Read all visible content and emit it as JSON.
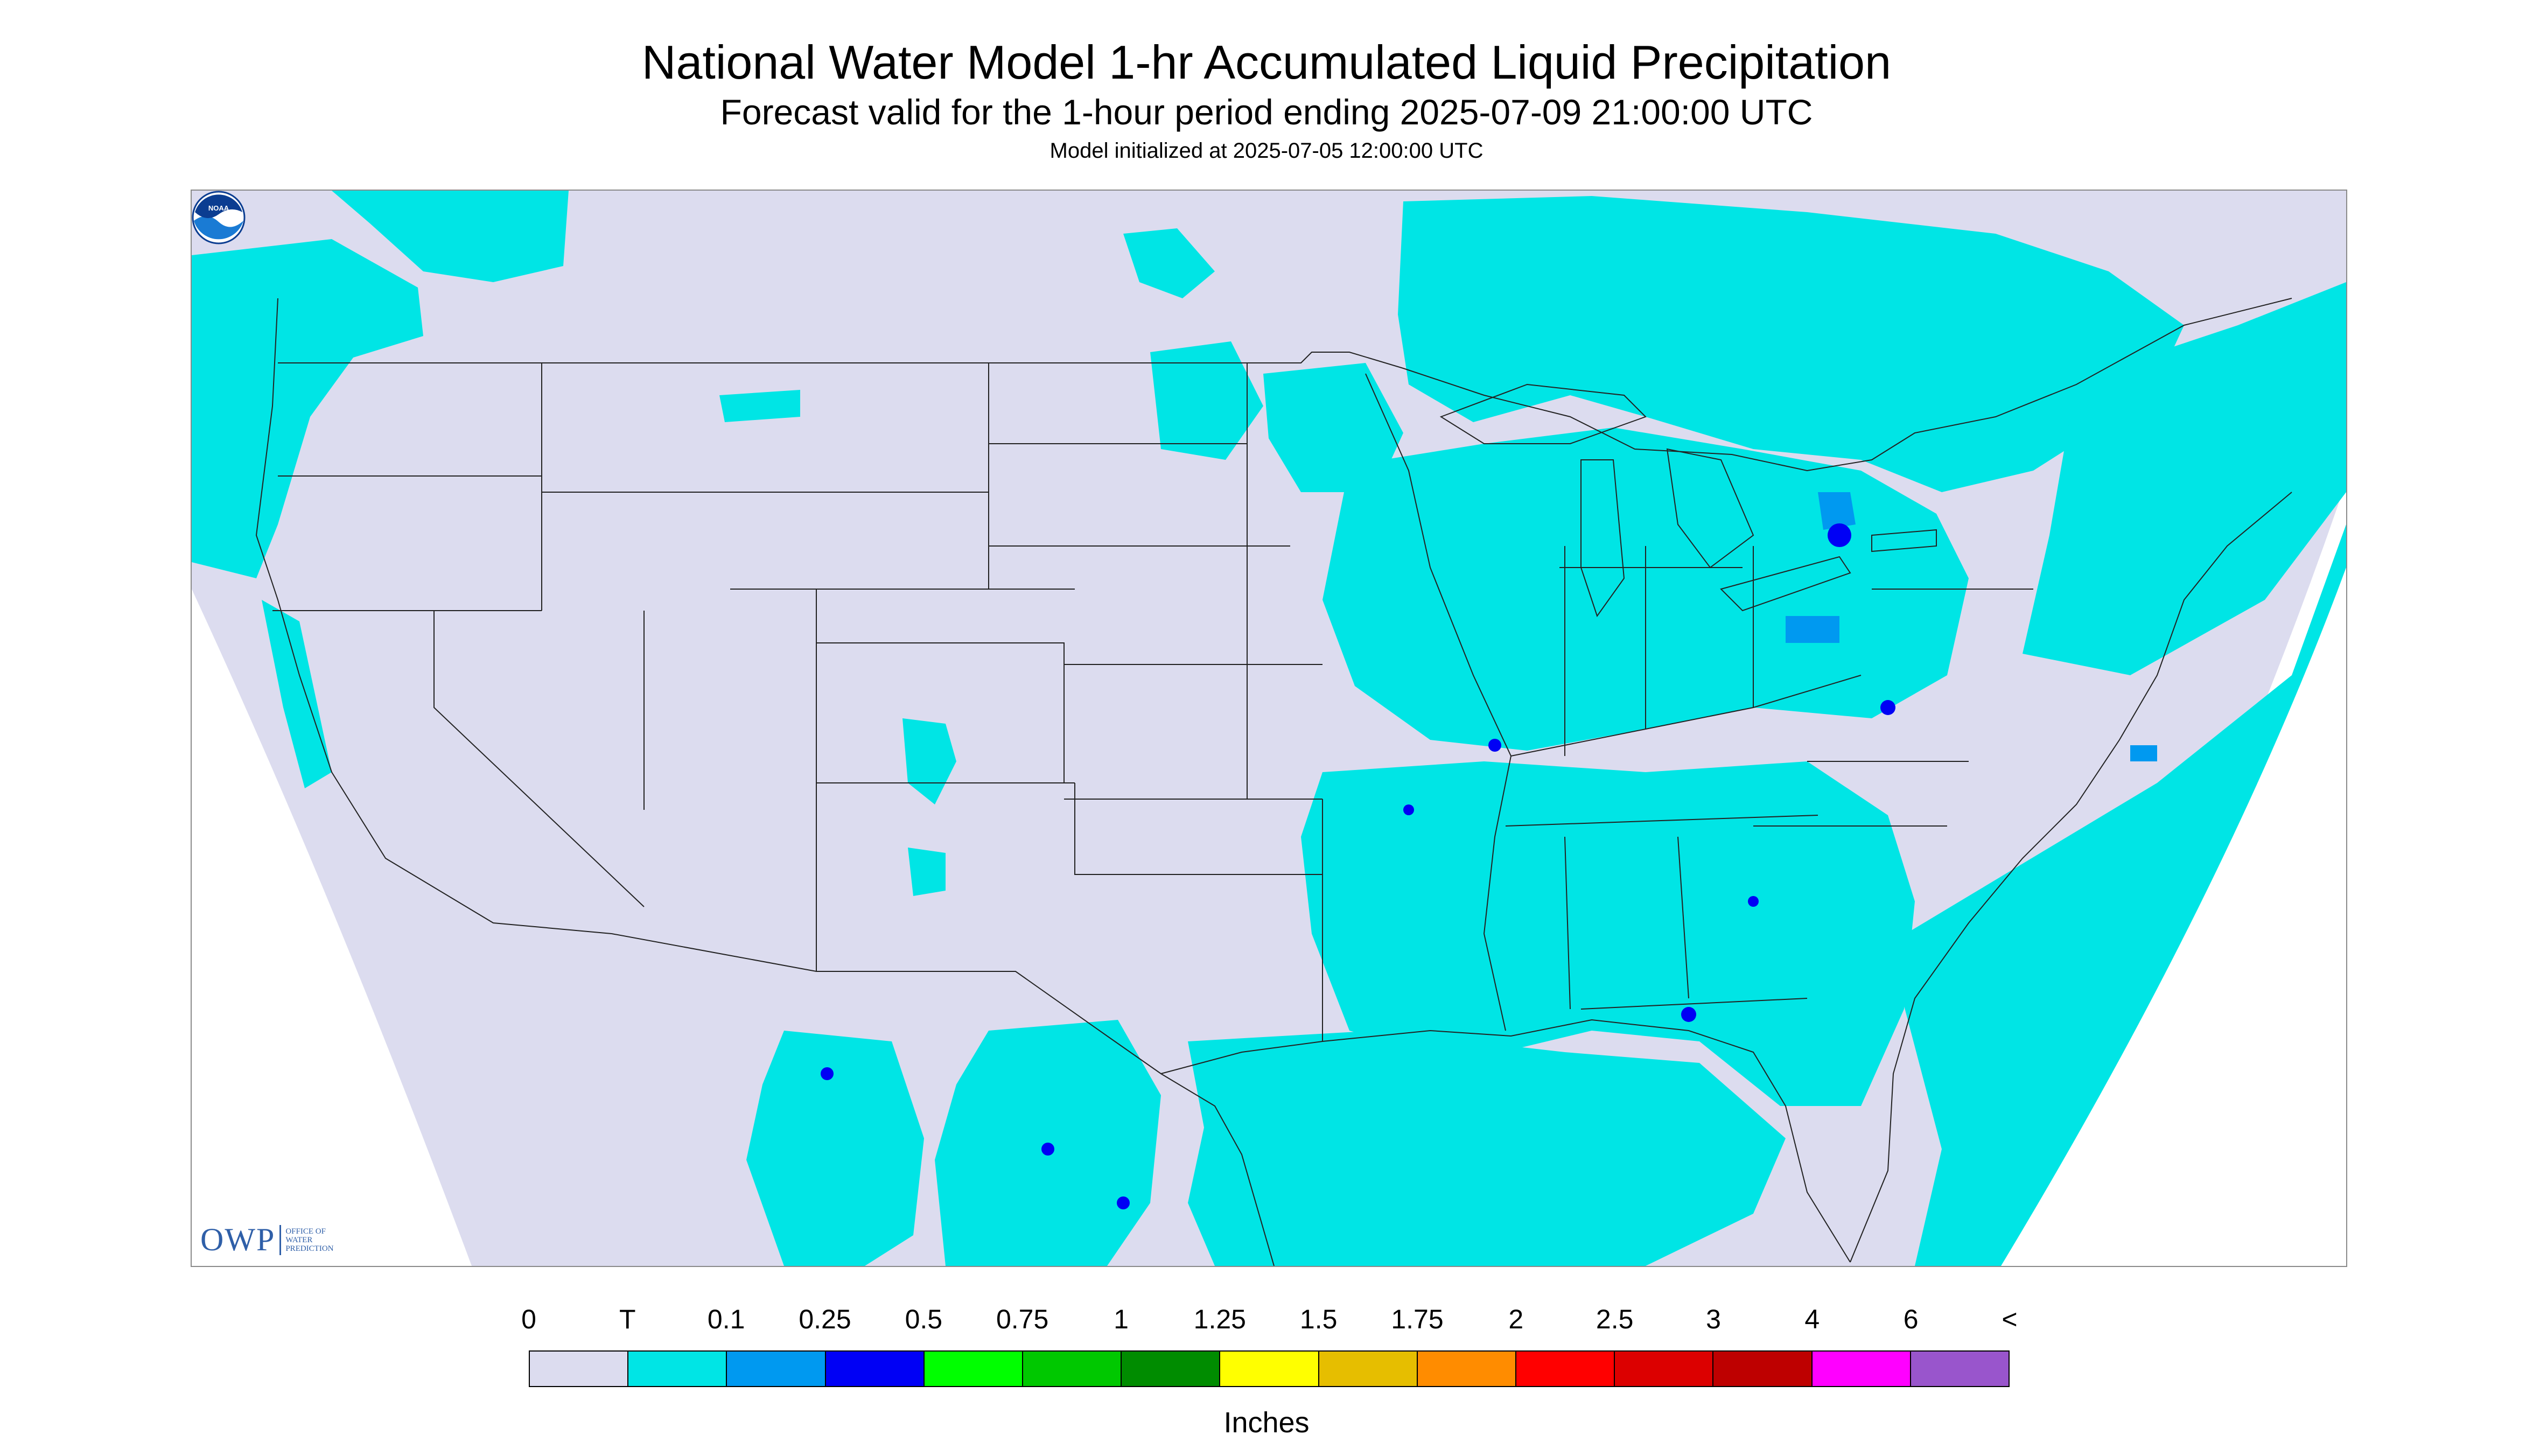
{
  "header": {
    "title": "National Water Model 1-hr Accumulated Liquid Precipitation",
    "subtitle": "Forecast valid for the 1-hour period ending 2025-07-09 21:00:00 UTC",
    "init_line": "Model initialized at 2025-07-05 12:00:00 UTC"
  },
  "map": {
    "background_color": "#dcdcef",
    "outside_domain_color": "#ffffff",
    "trace_color": "#00e5e5",
    "light_blue_color": "#0099f0",
    "dark_blue_color": "#0000f5",
    "boundary_color": "#222222",
    "region": "Contiguous United States with southern Canada and northern Mexico"
  },
  "logos": {
    "owp": {
      "letters": "OWP",
      "words": "OFFICE OF\nWATER\nPREDICTION"
    },
    "noaa": {
      "text": "NOAA"
    }
  },
  "legend": {
    "labels": [
      "0",
      "T",
      "0.1",
      "0.25",
      "0.5",
      "0.75",
      "1",
      "1.25",
      "1.5",
      "1.75",
      "2",
      "2.5",
      "3",
      "4",
      "6",
      "<"
    ],
    "colors": [
      "#dcdcef",
      "#00e5e5",
      "#0099f0",
      "#0000f5",
      "#00ff00",
      "#00c800",
      "#008c00",
      "#ffff00",
      "#e6be00",
      "#ff8c00",
      "#ff0000",
      "#dc0000",
      "#be0000",
      "#ff00ff",
      "#9955cc"
    ],
    "units": "Inches"
  }
}
